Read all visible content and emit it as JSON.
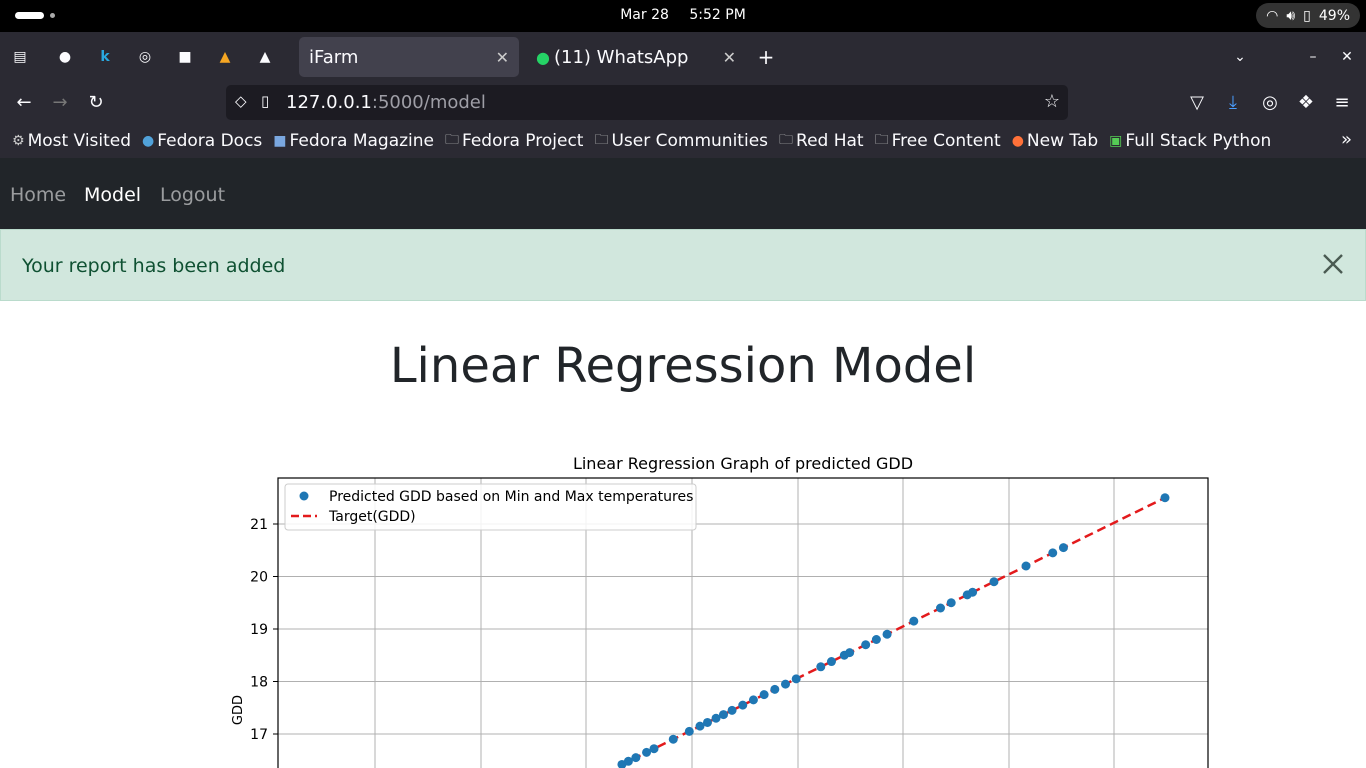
{
  "system": {
    "date": "Mar 28",
    "time": "5:52 PM",
    "battery": "49%"
  },
  "browser": {
    "tabs": [
      {
        "label": "iFarm",
        "active": true
      },
      {
        "label": "(11) WhatsApp",
        "active": false
      }
    ],
    "url_host": "127.0.0.1",
    "url_path": ":5000/model",
    "bookmarks": [
      "Most Visited",
      "Fedora Docs",
      "Fedora Magazine",
      "Fedora Project",
      "User Communities",
      "Red Hat",
      "Free Content",
      "New Tab",
      "Full Stack Python"
    ]
  },
  "nav": {
    "home": "Home",
    "model": "Model",
    "logout": "Logout"
  },
  "alert": {
    "message": "Your report has been added"
  },
  "page": {
    "title": "Linear Regression Model"
  },
  "colors": {
    "navbar": "#212529",
    "alert_bg": "#d1e7dd",
    "alert_text": "#0f5132",
    "point": "#1f77b4",
    "line": "#e31a1c"
  },
  "chart_data": {
    "type": "scatter",
    "title": "Linear Regression Graph of predicted GDD",
    "ylabel": "GDD",
    "xlabel": "",
    "yticks": [
      17,
      18,
      19,
      20,
      21
    ],
    "legend": [
      "Predicted GDD based on Min and Max temperatures",
      "Target(GDD)"
    ],
    "legend_position": "top-left",
    "grid": true,
    "points": [
      16.42,
      16.48,
      16.55,
      16.65,
      16.72,
      16.9,
      17.05,
      17.15,
      17.22,
      17.3,
      17.37,
      17.45,
      17.55,
      17.65,
      17.75,
      17.85,
      17.95,
      18.05,
      18.28,
      18.38,
      18.5,
      18.55,
      18.7,
      18.8,
      18.9,
      19.15,
      19.4,
      19.5,
      19.65,
      19.7,
      19.9,
      20.2,
      20.45,
      20.55,
      21.5
    ],
    "line_range": [
      16.4,
      21.5
    ]
  }
}
